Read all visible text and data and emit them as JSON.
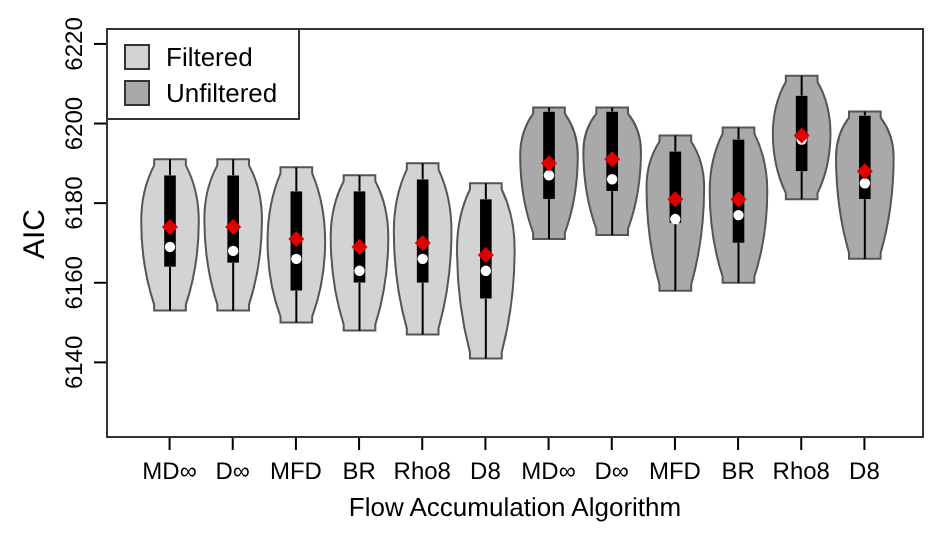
{
  "chart_data": {
    "type": "box",
    "xlabel": "Flow Accumulation Algorithm",
    "ylabel": "AIC",
    "categories": [
      "MD∞",
      "D∞",
      "MFD",
      "BR",
      "Rho8",
      "D8",
      "MD∞",
      "D∞",
      "MFD",
      "BR",
      "Rho8",
      "D8"
    ],
    "series": [
      {
        "name": "Filtered",
        "color": "#d3d3d3",
        "boxes": [
          {
            "low": 6153,
            "q1": 6164,
            "median": 6169,
            "q3": 6187,
            "high": 6191,
            "mean": 6174
          },
          {
            "low": 6153,
            "q1": 6165,
            "median": 6168,
            "q3": 6187,
            "high": 6191,
            "mean": 6174
          },
          {
            "low": 6150,
            "q1": 6158,
            "median": 6166,
            "q3": 6183,
            "high": 6189,
            "mean": 6171
          },
          {
            "low": 6148,
            "q1": 6160,
            "median": 6163,
            "q3": 6183,
            "high": 6187,
            "mean": 6169
          },
          {
            "low": 6147,
            "q1": 6160,
            "median": 6166,
            "q3": 6186,
            "high": 6190,
            "mean": 6170
          },
          {
            "low": 6141,
            "q1": 6156,
            "median": 6163,
            "q3": 6181,
            "high": 6185,
            "mean": 6167
          },
          null,
          null,
          null,
          null,
          null,
          null
        ]
      },
      {
        "name": "Unfiltered",
        "color": "#a9a9a9",
        "boxes": [
          null,
          null,
          null,
          null,
          null,
          null,
          {
            "low": 6171,
            "q1": 6181,
            "median": 6187,
            "q3": 6203,
            "high": 6204,
            "mean": 6190
          },
          {
            "low": 6172,
            "q1": 6183,
            "median": 6186,
            "q3": 6203,
            "high": 6204,
            "mean": 6191
          },
          {
            "low": 6158,
            "q1": 6175,
            "median": 6176,
            "q3": 6193,
            "high": 6197,
            "mean": 6181
          },
          {
            "low": 6160,
            "q1": 6170,
            "median": 6177,
            "q3": 6196,
            "high": 6199,
            "mean": 6181
          },
          {
            "low": 6181,
            "q1": 6188,
            "median": 6196,
            "q3": 6207,
            "high": 6212,
            "mean": 6197
          },
          {
            "low": 6166,
            "q1": 6181,
            "median": 6185,
            "q3": 6202,
            "high": 6203,
            "mean": 6188
          }
        ]
      }
    ],
    "ylim": [
      6121,
      6224
    ],
    "yticks": [
      6140,
      6160,
      6180,
      6200,
      6220
    ],
    "grid": false,
    "legend": "top left"
  }
}
